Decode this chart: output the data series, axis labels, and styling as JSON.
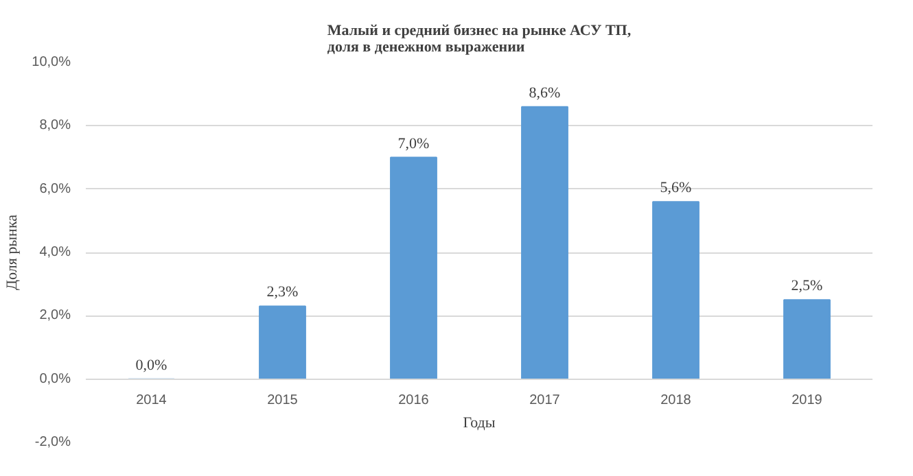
{
  "chart_data": {
    "type": "bar",
    "title": "Малый и средний бизнес на рынке АСУ ТП,\nдоля в денежном выражении",
    "xlabel": "Годы",
    "ylabel": "Доля рынка",
    "categories": [
      "2014",
      "2015",
      "2016",
      "2017",
      "2018",
      "2019"
    ],
    "values": [
      0.0,
      2.3,
      7.0,
      8.6,
      5.6,
      2.5
    ],
    "value_labels": [
      "0,0%",
      "2,3%",
      "7,0%",
      "8,6%",
      "5,6%",
      "2,5%"
    ],
    "color": "#5b9bd5",
    "ylim": [
      -2,
      10
    ],
    "yticks": [
      {
        "value": -2,
        "label": "-2,0%"
      },
      {
        "value": 0,
        "label": "0,0%"
      },
      {
        "value": 2,
        "label": "2,0%"
      },
      {
        "value": 4,
        "label": "4,0%"
      },
      {
        "value": 6,
        "label": "6,0%"
      },
      {
        "value": 8,
        "label": "8,0%"
      },
      {
        "value": 10,
        "label": "10,0%"
      }
    ],
    "grid": "y"
  }
}
